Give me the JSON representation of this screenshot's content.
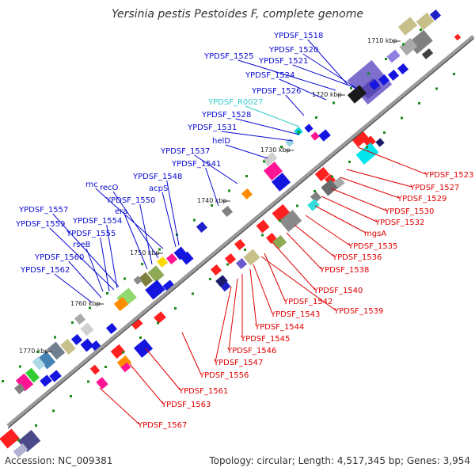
{
  "title": "Yersinia pestis Pestoides F, complete genome",
  "footer": {
    "accession": "Accession: NC_009381",
    "stats": "Topology: circular; Length: 4,517,345 bp; Genes: 3,954"
  },
  "colors": {
    "forward_label": "#0a0ad2",
    "reverse_label": "#e00000",
    "rna_label": "#33cccc",
    "tick": "#1a8a1a",
    "backbone": "#888888"
  },
  "ticks": [
    "1710 kbp",
    "1720 kbp",
    "1730 kbp",
    "1740 kbp",
    "1750 kbp",
    "1760 kbp",
    "1770 kbp"
  ],
  "forward_labels": [
    "YPDSF_1518",
    "YPDSF_1520",
    "YPDSF_1521",
    "YPDSF_1525",
    "YPDSF_1524",
    "YPDSF_1526",
    "YPDSF_R0027",
    "YPDSF_1528",
    "YPDSF_1531",
    "helD",
    "YPDSF_1537",
    "YPDSF_1541",
    "YPDSF_1548",
    "acpS",
    "rnc",
    "recO",
    "YPDSF_1550",
    "era",
    "YPDSF_1557",
    "YPDSF_1554",
    "YPDSF_1559",
    "YPDSF_1555",
    "rseB",
    "YPDSF_1560",
    "YPDSF_1562"
  ],
  "reverse_labels": [
    "YPDSF_1523",
    "YPDSF_1527",
    "YPDSF_1529",
    "YPDSF_1530",
    "YPDSF_1532",
    "mgsA",
    "YPDSF_1535",
    "YPDSF_1536",
    "YPDSF_1538",
    "YPDSF_1540",
    "YPDSF_1542",
    "YPDSF_1539",
    "YPDSF_1543",
    "YPDSF_1544",
    "YPDSF_1545",
    "YPDSF_1546",
    "YPDSF_1547",
    "YPDSF_1556",
    "YPDSF_1561",
    "YPDSF_1563",
    "YPDSF_1567"
  ]
}
